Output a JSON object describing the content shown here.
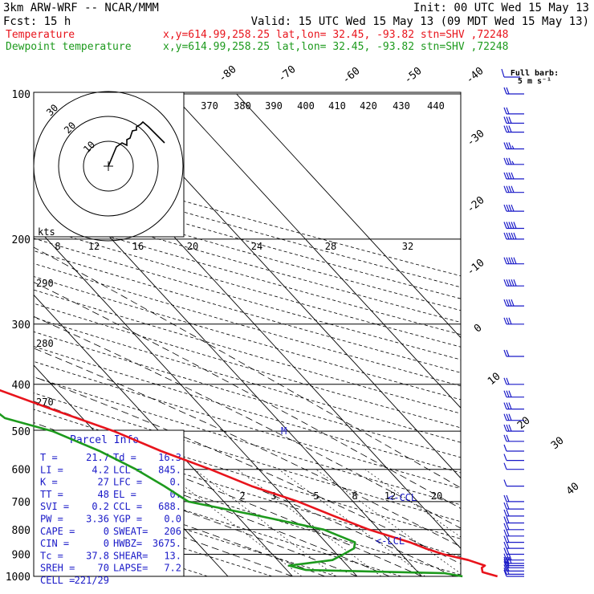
{
  "header": {
    "model": "3km ARW-WRF -- NCAR/MMM",
    "init": "Init: 00 UTC Wed 15 May 13",
    "fcst": "Fcst:    15 h",
    "valid": "Valid: 15 UTC Wed 15 May 13 (09 MDT Wed 15 May 13)",
    "legend": [
      {
        "label": "Temperature",
        "location": "x,y=614.99,258.25   lat,lon= 32.45, -93.82  stn=SHV ,72248",
        "color": "#e8141c"
      },
      {
        "label": "Dewpoint temperature",
        "location": "x,y=614.99,258.25   lat,lon= 32.45, -93.82  stn=SHV ,72248",
        "color": "#1d9a1d"
      }
    ]
  },
  "barb_legend": {
    "line1": "Full barb:",
    "line2": "5 m s⁻¹"
  },
  "pressure_labels": [
    "100",
    "200",
    "300",
    "400",
    "500",
    "600",
    "700",
    "800",
    "900",
    "1000"
  ],
  "temperature_labels": [
    "-80",
    "-70",
    "-60",
    "-50",
    "-40",
    "-30",
    "-20",
    "-10",
    "0",
    "10",
    "20",
    "30",
    "40"
  ],
  "theta_labels": [
    "370",
    "380",
    "390",
    "400",
    "410",
    "420",
    "430",
    "440"
  ],
  "theta_side_labels": [
    "290",
    "280",
    "270"
  ],
  "mixing_ratio_labels": [
    "2",
    "3",
    "5",
    "8",
    "12",
    "20"
  ],
  "hodograph": {
    "ring_labels": [
      "10",
      "20",
      "30"
    ],
    "axis_unit": "kts",
    "axis_ticks": [
      "8",
      "12",
      "16",
      "20",
      "24",
      "28",
      "32"
    ],
    "path": [
      [
        135,
        207
      ],
      [
        145,
        183
      ],
      [
        152,
        178
      ],
      [
        158,
        181
      ],
      [
        158,
        174
      ],
      [
        162,
        172
      ],
      [
        165,
        163
      ],
      [
        170,
        162
      ],
      [
        170,
        158
      ],
      [
        175,
        155
      ],
      [
        178,
        152
      ],
      [
        185,
        158
      ],
      [
        195,
        168
      ],
      [
        205,
        178
      ]
    ]
  },
  "parcel_info": {
    "title": "Parcel Info",
    "rows": [
      [
        "T   =",
        "21.7",
        "Td =",
        "16.3"
      ],
      [
        "LI  =",
        "4.2",
        "LCL =",
        "845."
      ],
      [
        "K   =",
        "27",
        "LFC =",
        "0."
      ],
      [
        "TT  =",
        "48",
        "EL  =",
        "0."
      ],
      [
        "SVI =",
        "0.2",
        "CCL =",
        "688."
      ],
      [
        "PW  =",
        "3.36",
        "YGP =",
        "0.0"
      ],
      [
        "CAPE =",
        "0",
        "SWEAT=",
        "206"
      ],
      [
        "CIN  =",
        "0",
        "HWBZ=",
        "3675."
      ],
      [
        "Tc  =",
        "37.8",
        "SHEAR=",
        "13."
      ],
      [
        "SREH =",
        "70",
        "LAPSE=",
        "7.2"
      ],
      [
        "CELL =",
        "221/29",
        "",
        ""
      ]
    ]
  },
  "annotations": {
    "ccl": "<-CCL",
    "lcl": "<-LCL",
    "mlabel": "M"
  },
  "chart_data": {
    "type": "line",
    "title": "Skew-T log-P sounding",
    "xlabel": "",
    "ylabel": "",
    "y_scale": "log",
    "ylim": [
      1000,
      100
    ],
    "series": [
      {
        "name": "Temperature",
        "color": "#e8141c",
        "pressure": [
          1000,
          980,
          960,
          950,
          925,
          900,
          875,
          850,
          800,
          750,
          700,
          650,
          600,
          550,
          500,
          450,
          400,
          350,
          300,
          275,
          250,
          225,
          200,
          175,
          150,
          130,
          115,
          100
        ],
        "temperature": [
          21.7,
          20.0,
          20.5,
          21.3,
          19.5,
          16.5,
          14.5,
          13.0,
          8.5,
          5.0,
          1.5,
          -3.5,
          -7.5,
          -12.5,
          -17.0,
          -23.5,
          -30.5,
          -37.0,
          -45.5,
          -50.5,
          -56.0,
          -61.0,
          -62.0,
          -60.5,
          -60.0,
          -66.5,
          -67.0,
          -66.0
        ]
      },
      {
        "name": "Dewpoint temperature",
        "color": "#1d9a1d",
        "pressure": [
          1000,
          985,
          970,
          950,
          925,
          900,
          875,
          850,
          800,
          750,
          700,
          650,
          600,
          550,
          500,
          470,
          450,
          400,
          350,
          300,
          275,
          250,
          225,
          200,
          175,
          150,
          130,
          115,
          100
        ],
        "temperature": [
          16.3,
          14.0,
          -7.0,
          -9.0,
          -1.5,
          1.0,
          3.5,
          4.5,
          1.5,
          -6.5,
          -15.5,
          -17.0,
          -19.0,
          -22.0,
          -26.5,
          -32.0,
          -32.5,
          -36.0,
          -42.5,
          -55.0,
          -60.0,
          -63.0,
          -70.0,
          -75.0,
          -87.0,
          -87.0,
          -84.0,
          -78.0,
          -68.0
        ]
      }
    ],
    "wind_barbs": {
      "units": "m/s",
      "pressure": [
        1000,
        990,
        975,
        960,
        950,
        940,
        925,
        900,
        875,
        850,
        825,
        800,
        775,
        750,
        725,
        700,
        650,
        600,
        575,
        550,
        525,
        500,
        475,
        450,
        425,
        400,
        350,
        300,
        275,
        250,
        225,
        200,
        190,
        175,
        160,
        150,
        140,
        130,
        120,
        115,
        110,
        100
      ],
      "speed": [
        7,
        10,
        12,
        12,
        12,
        15,
        15,
        12,
        12,
        12,
        12,
        12,
        12,
        12,
        12,
        10,
        7,
        5,
        5,
        7,
        10,
        15,
        15,
        17,
        15,
        12,
        12,
        15,
        20,
        25,
        25,
        25,
        25,
        22,
        22,
        20,
        18,
        18,
        15,
        15,
        12,
        10
      ],
      "direction": [
        270,
        270,
        260,
        250,
        250,
        240,
        240,
        240,
        240,
        240,
        240,
        240,
        240,
        240,
        240,
        240,
        240,
        240,
        250,
        260,
        260,
        260,
        260,
        260,
        260,
        260,
        260,
        260,
        260,
        260,
        260,
        260,
        260,
        260,
        260,
        260,
        260,
        260,
        260,
        260,
        260,
        260
      ]
    }
  }
}
